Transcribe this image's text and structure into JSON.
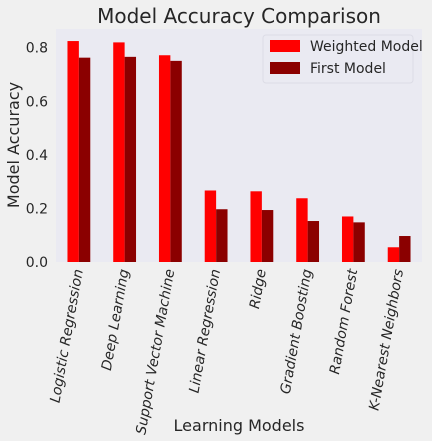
{
  "chart_data": {
    "type": "bar",
    "title": "Model Accuracy Comparison",
    "xlabel": "Learning Models",
    "ylabel": "Model Accuracy",
    "ylim": [
      0,
      0.87
    ],
    "yticks": [
      0.0,
      0.2,
      0.4,
      0.6,
      0.8
    ],
    "ytick_labels": [
      "0.0",
      "0.2",
      "0.4",
      "0.6",
      "0.8"
    ],
    "grid": false,
    "legend_position": "top-right",
    "categories": [
      "Logistic Regression",
      "Deep Learning",
      "Support Vector Machine",
      "Linear Regression",
      "Ridge",
      "Gradient Boosting",
      "Random Forest",
      "K-Nearest Neighbors"
    ],
    "series": [
      {
        "name": "Weighted Model",
        "color": "#ff0000",
        "values": [
          0.825,
          0.82,
          0.772,
          0.267,
          0.264,
          0.238,
          0.17,
          0.055
        ]
      },
      {
        "name": "First Model",
        "color": "#8b0000",
        "values": [
          0.763,
          0.766,
          0.751,
          0.197,
          0.194,
          0.153,
          0.148,
          0.097
        ]
      }
    ]
  },
  "style": {
    "plot_background": "#eaeaf2",
    "page_background": "#f0f0f0",
    "text_color": "#262626"
  }
}
